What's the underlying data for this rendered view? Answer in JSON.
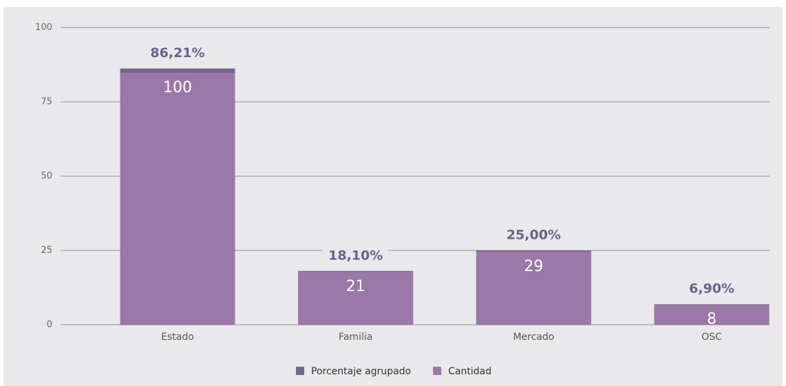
{
  "chart_data": {
    "type": "bar",
    "categories": [
      "Estado",
      "Familia",
      "Mercado",
      "OSC"
    ],
    "series": [
      {
        "name": "Porcentaje agrupado",
        "color": "#76668f",
        "values": [
          86.21,
          18.1,
          25.0,
          6.9
        ],
        "value_labels": [
          "86,21%",
          "18,10%",
          "25,00%",
          "6,90%"
        ]
      },
      {
        "name": "Cantidad",
        "color": "#9b78a8",
        "values": [
          100,
          21,
          29,
          8
        ],
        "axis": "y2"
      }
    ],
    "ylim": [
      0,
      100
    ],
    "yticks": [
      0,
      25,
      50,
      75,
      100
    ],
    "y2lim": [
      0,
      118
    ],
    "grid": true,
    "grid_color": "#9c7fab",
    "legend": "bottom"
  }
}
